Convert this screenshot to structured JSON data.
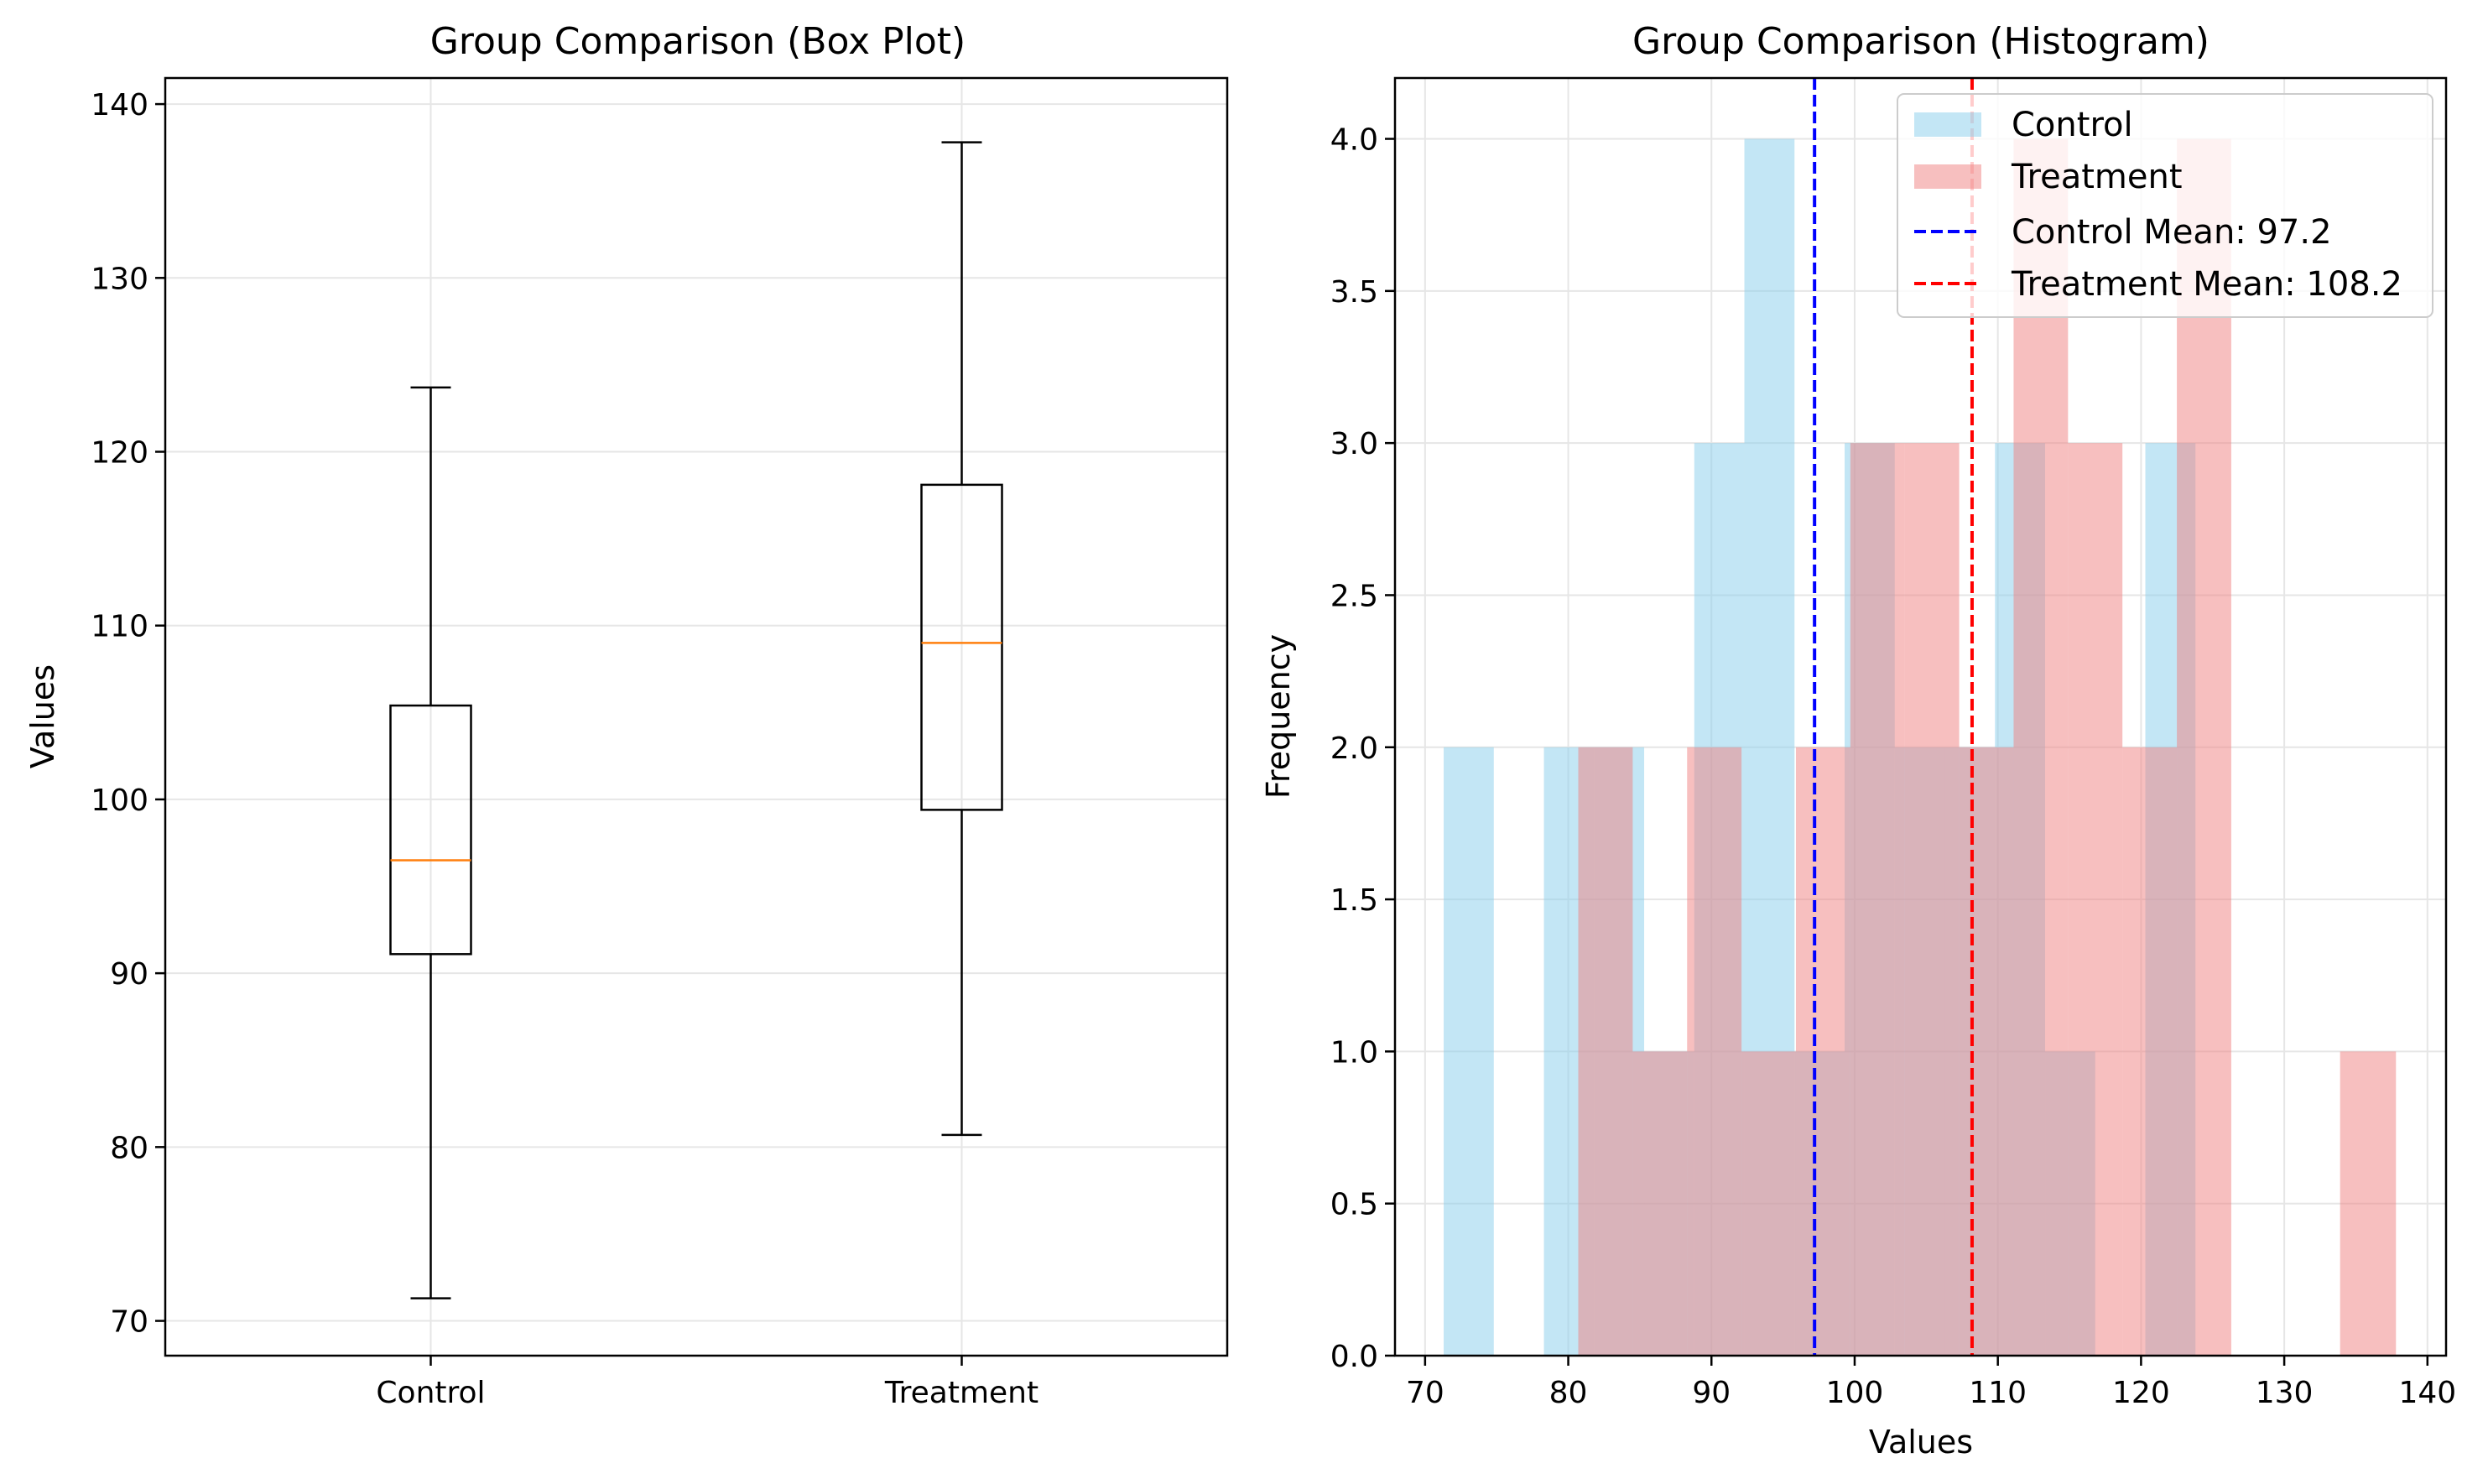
{
  "chart_data": [
    {
      "type": "box",
      "title": "Group Comparison (Box Plot)",
      "xlabel": "",
      "ylabel": "Values",
      "categories": [
        "Control",
        "Treatment"
      ],
      "ylim": [
        68,
        141.5
      ],
      "yticks": [
        70,
        80,
        90,
        100,
        110,
        120,
        130,
        140
      ],
      "grid": true,
      "series": [
        {
          "name": "Control",
          "whisker_low": 71.3,
          "q1": 91.1,
          "median": 96.5,
          "q3": 105.4,
          "whisker_high": 123.7
        },
        {
          "name": "Treatment",
          "whisker_low": 80.7,
          "q1": 99.4,
          "median": 109.0,
          "q3": 118.1,
          "whisker_high": 137.8
        }
      ],
      "colors": {
        "box": "#000000",
        "median": "#ff7f0e"
      }
    },
    {
      "type": "histogram",
      "title": "Group Comparison (Histogram)",
      "xlabel": "Values",
      "ylabel": "Frequency",
      "xlim": [
        67.9,
        141.3
      ],
      "ylim": [
        0,
        4.2
      ],
      "xticks": [
        70,
        80,
        90,
        100,
        110,
        120,
        130,
        140
      ],
      "yticks": [
        "0.0",
        "0.5",
        "1.0",
        "1.5",
        "2.0",
        "2.5",
        "3.0",
        "3.5",
        "4.0"
      ],
      "grid": true,
      "legend_position": "upper-right",
      "series": [
        {
          "name": "Control",
          "color": "#87ceeb",
          "opacity": 0.5,
          "bin_edges": [
            71.3,
            74.8,
            78.3,
            81.8,
            85.3,
            88.8,
            92.3,
            95.8,
            99.3,
            102.8,
            106.3,
            109.8,
            113.3,
            116.8,
            120.3,
            123.8
          ],
          "counts": [
            2,
            0,
            2,
            2,
            1,
            3,
            4,
            1,
            3,
            2,
            2,
            3,
            1,
            0,
            3
          ]
        },
        {
          "name": "Treatment",
          "color": "#f08080",
          "opacity": 0.5,
          "bin_edges": [
            80.7,
            84.5,
            88.3,
            92.1,
            95.9,
            99.7,
            103.5,
            107.3,
            111.1,
            114.9,
            118.7,
            122.5,
            126.3,
            130.1,
            133.9,
            137.8
          ],
          "counts": [
            2,
            1,
            2,
            1,
            2,
            3,
            3,
            2,
            4,
            3,
            2,
            4,
            0,
            0,
            1
          ]
        }
      ],
      "mean_lines": [
        {
          "label": "Control Mean: 97.2",
          "value": 97.2,
          "color": "#0000ff"
        },
        {
          "label": "Treatment Mean: 108.2",
          "value": 108.2,
          "color": "#ff0000"
        }
      ]
    }
  ]
}
